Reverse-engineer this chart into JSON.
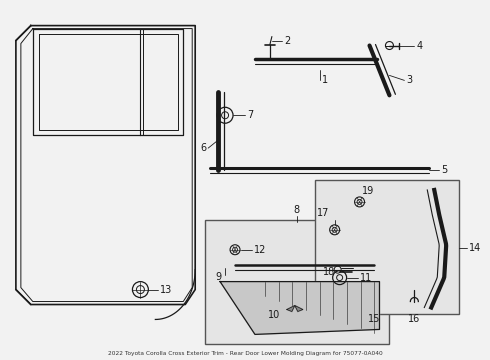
{
  "title": "2022 Toyota Corolla Cross Exterior Trim - Rear Door Lower Molding Diagram for 75077-0A040",
  "bg_color": "#f2f2f2",
  "line_color": "#1a1a1a",
  "box_fill": "#e5e5e5",
  "box_edge": "#555555"
}
